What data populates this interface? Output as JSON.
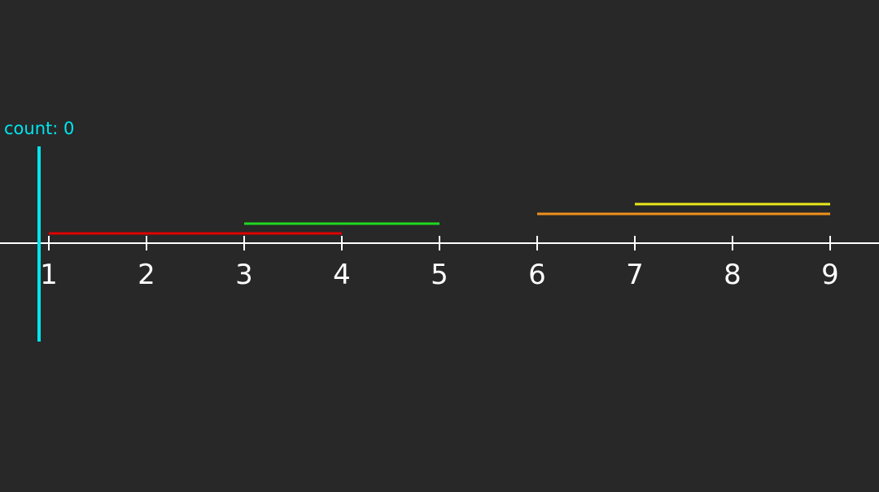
{
  "colors": {
    "background": "#282828",
    "axis": "#ffffff",
    "sweep_line": "#00e5ee",
    "count_text": "#00e5ee"
  },
  "sweep": {
    "count_label": "count: 0",
    "position": 0.9
  },
  "axis": {
    "ticks": [
      {
        "value": 1,
        "label": "1"
      },
      {
        "value": 2,
        "label": "2"
      },
      {
        "value": 3,
        "label": "3"
      },
      {
        "value": 4,
        "label": "4"
      },
      {
        "value": 5,
        "label": "5"
      },
      {
        "value": 6,
        "label": "6"
      },
      {
        "value": 7,
        "label": "7"
      },
      {
        "value": 8,
        "label": "8"
      },
      {
        "value": 9,
        "label": "9"
      }
    ]
  },
  "intervals": [
    {
      "start": 1,
      "end": 4,
      "color": "#e00000",
      "name": "interval-1-4"
    },
    {
      "start": 3,
      "end": 5,
      "color": "#1ed81e",
      "name": "interval-3-5"
    },
    {
      "start": 6,
      "end": 9,
      "color": "#f0901c",
      "name": "interval-6-9"
    },
    {
      "start": 7,
      "end": 9,
      "color": "#e8e81a",
      "name": "interval-7-9"
    }
  ]
}
